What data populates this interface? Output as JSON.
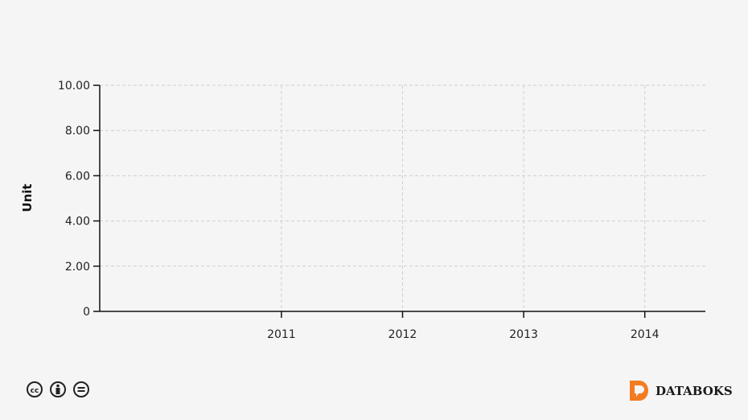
{
  "chart_data": {
    "type": "line",
    "title": "",
    "xlabel": "",
    "ylabel": "Unit",
    "x_ticks": [
      "2011",
      "2012",
      "2013",
      "2014"
    ],
    "y_ticks": [
      "0",
      "2.00",
      "4.00",
      "6.00",
      "8.00",
      "10.00"
    ],
    "xlim": [
      2009.5,
      2014.5
    ],
    "ylim": [
      0,
      10
    ],
    "grid": true,
    "series": []
  },
  "footer": {
    "license_icons": [
      "cc-icon",
      "by-icon",
      "nd-icon"
    ],
    "brand": "DATABOKS",
    "brand_color": "#f47c20"
  }
}
